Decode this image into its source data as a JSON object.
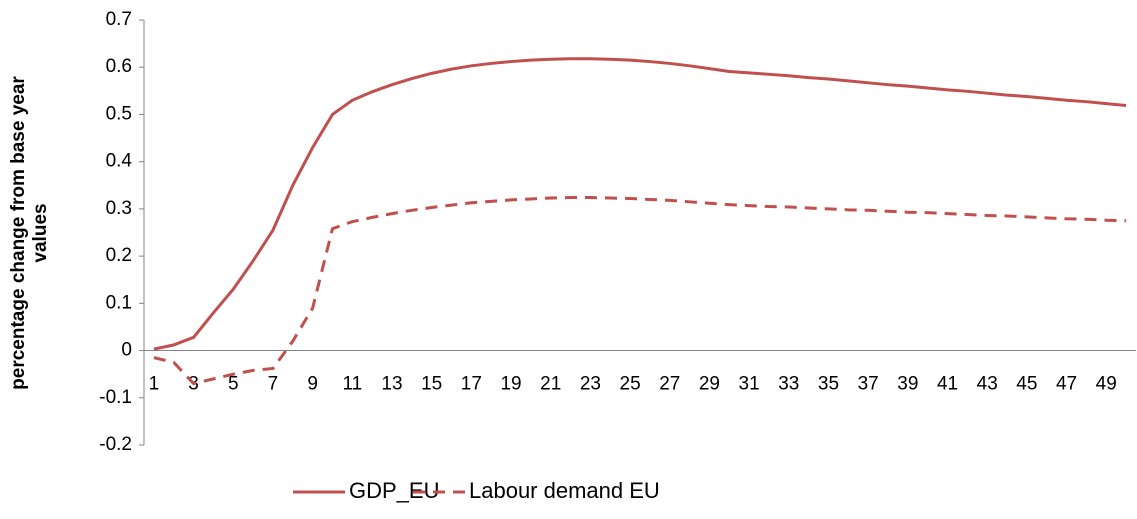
{
  "chart_data": {
    "type": "line",
    "y_label": "percentage change from base year values",
    "categories": [
      1,
      null,
      3,
      null,
      5,
      null,
      7,
      null,
      9,
      null,
      11,
      null,
      13,
      null,
      15,
      null,
      17,
      null,
      19,
      null,
      21,
      null,
      23,
      null,
      25,
      null,
      27,
      null,
      29,
      null,
      31,
      null,
      33,
      null,
      35,
      null,
      37,
      null,
      39,
      null,
      41,
      null,
      43,
      null,
      45,
      null,
      47,
      null,
      49,
      null
    ],
    "series": [
      {
        "name": "GDP_EU",
        "color": "#c0504d",
        "dash": "solid",
        "values": [
          0.003,
          0.012,
          0.028,
          0.08,
          0.13,
          0.19,
          0.255,
          0.35,
          0.43,
          0.5,
          0.53,
          0.548,
          0.563,
          0.576,
          0.587,
          0.596,
          0.603,
          0.608,
          0.612,
          0.615,
          0.617,
          0.618,
          0.618,
          0.617,
          0.615,
          0.612,
          0.608,
          0.603,
          0.597,
          0.591,
          0.588,
          0.585,
          0.582,
          0.578,
          0.575,
          0.571,
          0.567,
          0.563,
          0.56,
          0.556,
          0.552,
          0.549,
          0.545,
          0.541,
          0.538,
          0.534,
          0.53,
          0.527,
          0.523,
          0.519
        ]
      },
      {
        "name": "Labour demand EU",
        "color": "#c0504d",
        "dash": "dashed",
        "values": [
          -0.015,
          -0.025,
          -0.07,
          -0.06,
          -0.05,
          -0.042,
          -0.038,
          0.02,
          0.09,
          0.258,
          0.273,
          0.282,
          0.29,
          0.297,
          0.303,
          0.308,
          0.313,
          0.316,
          0.319,
          0.321,
          0.323,
          0.324,
          0.324,
          0.323,
          0.322,
          0.32,
          0.318,
          0.315,
          0.312,
          0.309,
          0.307,
          0.305,
          0.304,
          0.302,
          0.3,
          0.298,
          0.297,
          0.295,
          0.293,
          0.292,
          0.29,
          0.288,
          0.286,
          0.285,
          0.283,
          0.281,
          0.279,
          0.278,
          0.276,
          0.275
        ]
      }
    ],
    "ylim": [
      -0.2,
      0.7
    ],
    "yticks": [
      -0.2,
      -0.1,
      0,
      0.1,
      0.2,
      0.3,
      0.4,
      0.5,
      0.6,
      0.7
    ],
    "legend": "bottom"
  }
}
